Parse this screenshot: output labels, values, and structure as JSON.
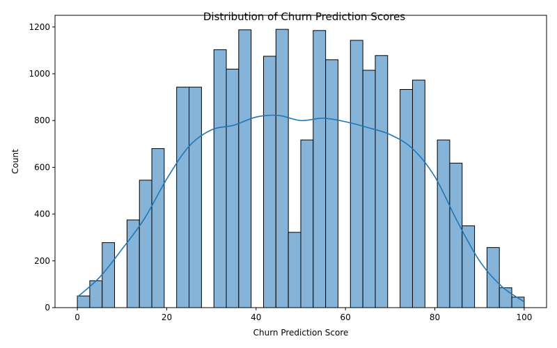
{
  "chart_data": {
    "type": "bar",
    "title": "Distribution of Churn Prediction Scores",
    "xlabel": "Churn Prediction Score",
    "ylabel": "Count",
    "xlim": [
      -5,
      105
    ],
    "ylim": [
      0,
      1250
    ],
    "xticks": [
      0,
      20,
      40,
      60,
      80,
      100
    ],
    "yticks": [
      0,
      200,
      400,
      600,
      800,
      1000,
      1200
    ],
    "bin_edges": [
      0,
      2.78,
      5.56,
      8.33,
      11.11,
      13.89,
      16.67,
      19.44,
      22.22,
      25,
      27.78,
      30.56,
      33.33,
      36.11,
      38.89,
      41.67,
      44.44,
      47.22,
      50,
      52.78,
      55.56,
      58.33,
      61.11,
      63.89,
      66.67,
      69.44,
      72.22,
      75,
      77.78,
      80.56,
      83.33,
      86.11,
      88.89,
      91.67,
      94.44,
      97.22,
      100
    ],
    "counts": [
      50,
      115,
      278,
      0,
      375,
      545,
      680,
      0,
      943,
      943,
      0,
      1103,
      1020,
      1188,
      0,
      1075,
      1190,
      322,
      717,
      1185,
      1060,
      0,
      1143,
      1015,
      1078,
      0,
      933,
      973,
      0,
      717,
      618,
      350,
      0,
      257,
      85,
      45
    ],
    "kde": {
      "x": [
        0,
        5,
        10,
        15,
        20,
        25,
        30,
        35,
        40,
        45,
        50,
        55,
        60,
        65,
        70,
        75,
        80,
        85,
        90,
        95,
        100
      ],
      "y": [
        45,
        130,
        250,
        380,
        550,
        690,
        760,
        780,
        815,
        822,
        800,
        810,
        795,
        770,
        740,
        680,
        560,
        370,
        200,
        90,
        25
      ]
    },
    "bar_color": "#86b4d9",
    "line_color": "#1f77b4",
    "grid": false
  }
}
